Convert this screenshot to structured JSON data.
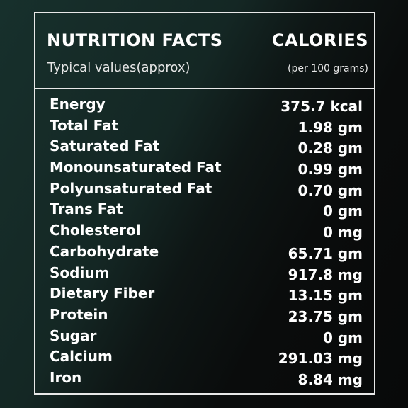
{
  "header": {
    "title": "NUTRITION FACTS",
    "calories_label": "CALORIES",
    "subtitle": "Typical values(approx)",
    "basis": "(per 100 grams)"
  },
  "nutrients": [
    {
      "label": "Energy",
      "value": "375.7 kcal"
    },
    {
      "label": "Total Fat",
      "value": "1.98 gm"
    },
    {
      "label": "Saturated Fat",
      "value": "0.28 gm"
    },
    {
      "label": "Monounsaturated Fat",
      "value": "0.99 gm"
    },
    {
      "label": "Polyunsaturated Fat",
      "value": "0.70 gm"
    },
    {
      "label": "Trans Fat",
      "value": "0 gm"
    },
    {
      "label": "Cholesterol",
      "value": "0 mg"
    },
    {
      "label": "Carbohydrate",
      "value": "65.71 gm"
    },
    {
      "label": "Sodium",
      "value": "917.8 mg"
    },
    {
      "label": "Dietary Fiber",
      "value": "13.15 gm"
    },
    {
      "label": "Protein",
      "value": "23.75 gm"
    },
    {
      "label": "Sugar",
      "value": "0 gm"
    },
    {
      "label": "Calcium",
      "value": "291.03 mg"
    },
    {
      "label": "Iron",
      "value": "8.84 mg"
    }
  ],
  "colors": {
    "text": "#ffffff",
    "border": "#e8e8e8",
    "background_dark": "#080909",
    "background_teal": "#17302c"
  }
}
